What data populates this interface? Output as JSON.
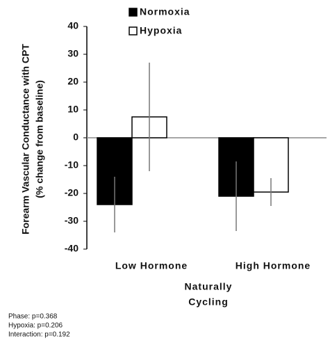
{
  "chart_data": {
    "type": "bar",
    "ylabel_lines": [
      "Forearm Vascular Conductance with CPT",
      "(% change from baseline)"
    ],
    "xlabel_lines": [
      "Naturally",
      "Cycling"
    ],
    "categories": [
      "Low Hormone",
      "High Hormone"
    ],
    "series": [
      {
        "name": "Normoxia",
        "color": "#000000",
        "values": [
          -24,
          -21
        ],
        "errors": [
          10,
          12.5
        ]
      },
      {
        "name": "Hypoxia",
        "color": "#ffffff",
        "values": [
          7.5,
          -19.5
        ],
        "errors": [
          19.5,
          5
        ]
      }
    ],
    "ylim": [
      -40,
      40
    ],
    "yticks": [
      -40,
      -30,
      -20,
      -10,
      0,
      10,
      20,
      30,
      40
    ],
    "annotations": [
      "Phase: p=0.368",
      "Hypoxia: p=0.206",
      "Interaction: p=0.192"
    ]
  }
}
